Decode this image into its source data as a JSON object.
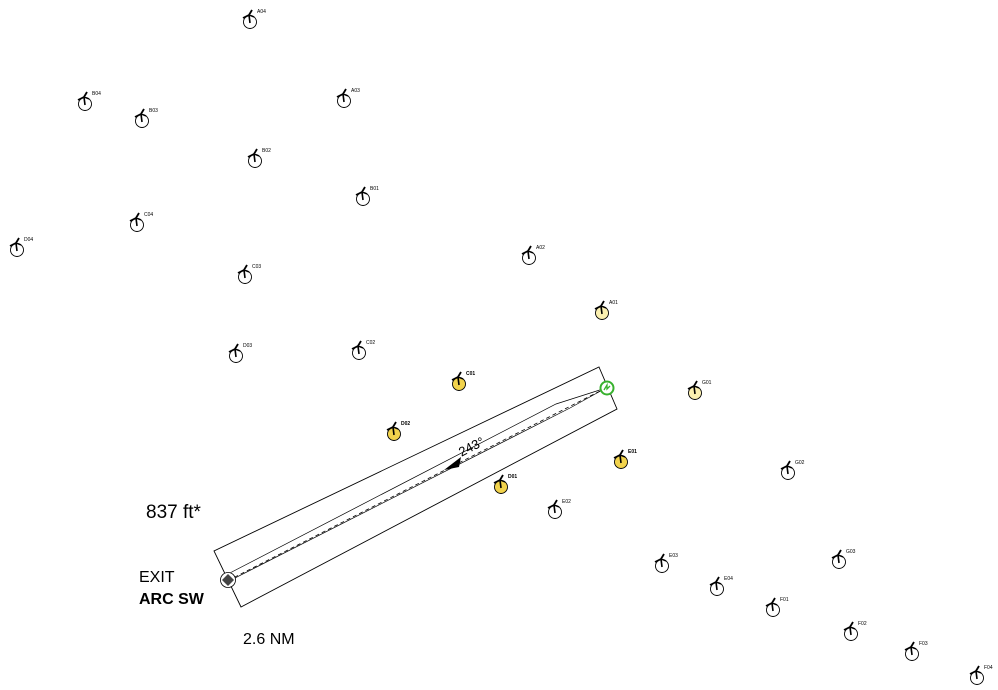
{
  "corridor": {
    "heading_label": "243°",
    "length_label": "837 ft*",
    "distance_label": "2.6 NM",
    "exit_label": "EXIT",
    "exit_name": "ARC SW"
  },
  "colors": {
    "highlight_fill": "#f2d34c",
    "light_fill": "#fbf0b0",
    "start_green": "#37b12d",
    "line": "#000000"
  },
  "turbines": [
    {
      "id": "A04",
      "state": "normal"
    },
    {
      "id": "A03",
      "state": "normal"
    },
    {
      "id": "B04",
      "state": "normal"
    },
    {
      "id": "B03",
      "state": "normal"
    },
    {
      "id": "B02",
      "state": "normal"
    },
    {
      "id": "B01",
      "state": "normal"
    },
    {
      "id": "C04",
      "state": "normal"
    },
    {
      "id": "D04",
      "state": "normal"
    },
    {
      "id": "C03",
      "state": "normal"
    },
    {
      "id": "A02",
      "state": "normal"
    },
    {
      "id": "A01",
      "state": "light"
    },
    {
      "id": "D03",
      "state": "normal"
    },
    {
      "id": "C02",
      "state": "normal"
    },
    {
      "id": "C01",
      "state": "highlight"
    },
    {
      "id": "G01",
      "state": "light"
    },
    {
      "id": "D02",
      "state": "highlight"
    },
    {
      "id": "E01",
      "state": "highlight"
    },
    {
      "id": "G02",
      "state": "normal"
    },
    {
      "id": "D01",
      "state": "highlight"
    },
    {
      "id": "E02",
      "state": "normal"
    },
    {
      "id": "E03",
      "state": "normal"
    },
    {
      "id": "G03",
      "state": "normal"
    },
    {
      "id": "E04",
      "state": "normal"
    },
    {
      "id": "F01",
      "state": "normal"
    },
    {
      "id": "F02",
      "state": "normal"
    },
    {
      "id": "F03",
      "state": "normal"
    },
    {
      "id": "F04",
      "state": "normal"
    }
  ]
}
